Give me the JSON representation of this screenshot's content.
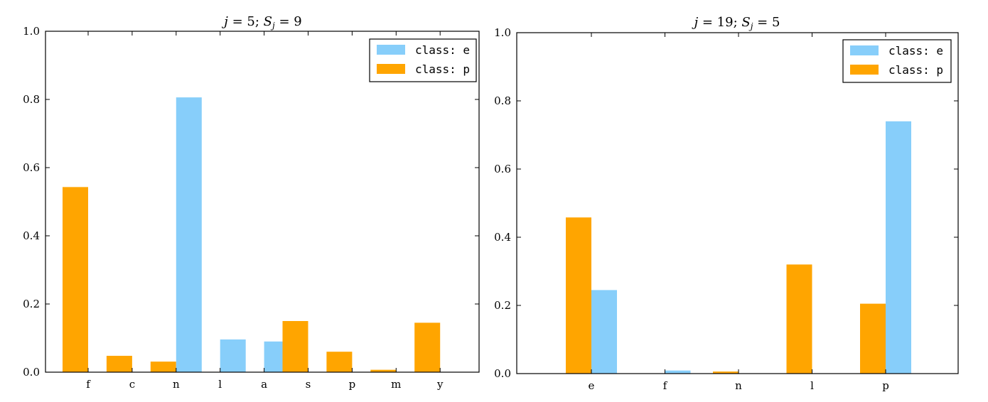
{
  "chart_data": [
    {
      "type": "bar",
      "title": "j = 5; S_j = 9",
      "title_parts": {
        "a": "j",
        "b": " = 5; ",
        "c": "S",
        "sub": "j",
        "d": " = 9"
      },
      "categories": [
        "f",
        "c",
        "n",
        "l",
        "a",
        "s",
        "p",
        "m",
        "y"
      ],
      "series": [
        {
          "name": "class: e",
          "color": "#87CEFA",
          "values": [
            0.0,
            0.0,
            0.806,
            0.096,
            0.09,
            0.0,
            0.0,
            0.0,
            0.0
          ]
        },
        {
          "name": "class: p",
          "color": "#FFA500",
          "values": [
            0.543,
            0.048,
            0.031,
            0.0,
            0.0,
            0.15,
            0.06,
            0.007,
            0.145
          ]
        }
      ],
      "ylim": [
        0,
        1.0
      ],
      "yticks": [
        "0.0",
        "0.2",
        "0.4",
        "0.6",
        "0.8",
        "1.0"
      ],
      "xlabel": "",
      "ylabel": "",
      "legend": "top-right",
      "grid": false
    },
    {
      "type": "bar",
      "title": "j = 19; S_j = 5",
      "title_parts": {
        "a": "j",
        "b": " = 19; ",
        "c": "S",
        "sub": "j",
        "d": " = 5"
      },
      "categories": [
        "e",
        "f",
        "n",
        "l",
        "p"
      ],
      "series": [
        {
          "name": "class: e",
          "color": "#87CEFA",
          "values": [
            0.245,
            0.009,
            0.0,
            0.0,
            0.74
          ]
        },
        {
          "name": "class: p",
          "color": "#FFA500",
          "values": [
            0.458,
            0.0,
            0.006,
            0.32,
            0.205
          ]
        }
      ],
      "ylim": [
        0,
        1.0
      ],
      "yticks": [
        "0.0",
        "0.2",
        "0.4",
        "0.6",
        "0.8",
        "1.0"
      ],
      "xlabel": "",
      "ylabel": "",
      "legend": "top-right",
      "grid": false
    }
  ]
}
